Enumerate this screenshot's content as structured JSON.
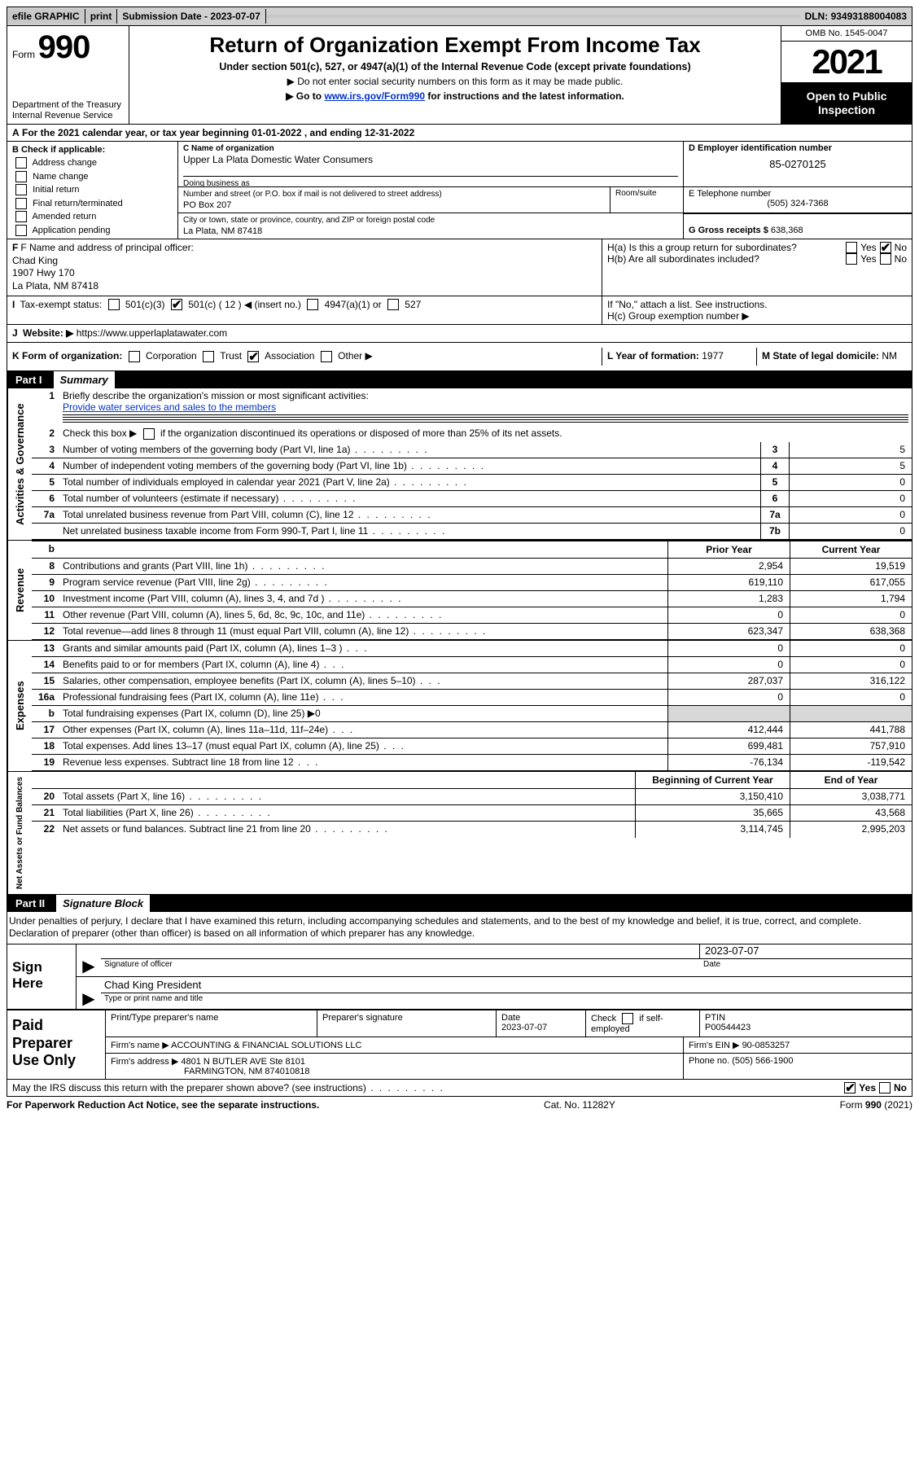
{
  "top": {
    "efile": "efile GRAPHIC",
    "print": "print",
    "submission_label": "Submission Date - ",
    "submission_date": "2023-07-07",
    "dln_label": "DLN: ",
    "dln": "93493188004083"
  },
  "header": {
    "form_word": "Form",
    "form_num": "990",
    "title": "Return of Organization Exempt From Income Tax",
    "sub1": "Under section 501(c), 527, or 4947(a)(1) of the Internal Revenue Code (except private foundations)",
    "sub2": "▶ Do not enter social security numbers on this form as it may be made public.",
    "sub3_pre": "▶ Go to ",
    "sub3_link": "www.irs.gov/Form990",
    "sub3_post": " for instructions and the latest information.",
    "dept": "Department of the Treasury\nInternal Revenue Service",
    "omb": "OMB No. 1545-0047",
    "year": "2021",
    "open": "Open to Public Inspection"
  },
  "a_line_pre": "For the 2021 calendar year, or tax year beginning ",
  "a_begin": "01-01-2022",
  "a_mid": " , and ending ",
  "a_end": "12-31-2022",
  "b": {
    "title": "B Check if applicable:",
    "items": [
      "Address change",
      "Name change",
      "Initial return",
      "Final return/terminated",
      "Amended return",
      "Application pending"
    ]
  },
  "c": {
    "label": "C Name of organization",
    "name": "Upper La Plata Domestic Water Consumers",
    "dba_label": "Doing business as",
    "addr_label": "Number and street (or P.O. box if mail is not delivered to street address)",
    "room_label": "Room/suite",
    "street": "PO Box 207",
    "city_label": "City or town, state or province, country, and ZIP or foreign postal code",
    "city": "La Plata, NM  87418"
  },
  "d": {
    "label": "D Employer identification number",
    "ein": "85-0270125"
  },
  "e": {
    "label": "E Telephone number",
    "phone": "(505) 324-7368"
  },
  "g": {
    "label": "G Gross receipts $ ",
    "amount": "638,368"
  },
  "f": {
    "label": "F Name and address of principal officer:",
    "name": "Chad King",
    "street": "1907 Hwy 170",
    "city": "La Plata, NM  87418"
  },
  "h": {
    "a": "H(a)  Is this a group return for subordinates?",
    "b": "H(b)  Are all subordinates included?",
    "b_note": "If \"No,\" attach a list. See instructions.",
    "c": "H(c)  Group exemption number ▶",
    "yes": "Yes",
    "no": "No"
  },
  "i": {
    "label": "Tax-exempt status:",
    "o1": "501(c)(3)",
    "o2_pre": "501(c) ( ",
    "o2_num": "12",
    "o2_post": " ) ◀ (insert no.)",
    "o3": "4947(a)(1) or",
    "o4": "527"
  },
  "j": {
    "label": "Website: ▶",
    "url": "https://www.upperlaplatawater.com"
  },
  "k": {
    "label": "K Form of organization:",
    "opts": [
      "Corporation",
      "Trust",
      "Association",
      "Other ▶"
    ],
    "checked_index": 2
  },
  "l": {
    "label": "L Year of formation: ",
    "val": "1977"
  },
  "m": {
    "label": "M State of legal domicile: ",
    "val": "NM"
  },
  "part1": {
    "num": "Part I",
    "title": "Summary"
  },
  "summary": {
    "l1_label": "Briefly describe the organization's mission or most significant activities:",
    "l1_text": "Provide water services and sales to the members",
    "l2": "Check this box ▶         if the organization discontinued its operations or disposed of more than 25% of its net assets.",
    "rows_ag": [
      {
        "n": "3",
        "t": "Number of voting members of the governing body (Part VI, line 1a)",
        "box": "3",
        "v": "5"
      },
      {
        "n": "4",
        "t": "Number of independent voting members of the governing body (Part VI, line 1b)",
        "box": "4",
        "v": "5"
      },
      {
        "n": "5",
        "t": "Total number of individuals employed in calendar year 2021 (Part V, line 2a)",
        "box": "5",
        "v": "0"
      },
      {
        "n": "6",
        "t": "Total number of volunteers (estimate if necessary)",
        "box": "6",
        "v": "0"
      },
      {
        "n": "7a",
        "t": "Total unrelated business revenue from Part VIII, column (C), line 12",
        "box": "7a",
        "v": "0"
      },
      {
        "n": "",
        "t": "Net unrelated business taxable income from Form 990-T, Part I, line 11",
        "box": "7b",
        "v": "0"
      }
    ],
    "prior_hdr": "Prior Year",
    "curr_hdr": "Current Year",
    "rev": [
      {
        "n": "8",
        "t": "Contributions and grants (Part VIII, line 1h)",
        "p": "2,954",
        "c": "19,519"
      },
      {
        "n": "9",
        "t": "Program service revenue (Part VIII, line 2g)",
        "p": "619,110",
        "c": "617,055"
      },
      {
        "n": "10",
        "t": "Investment income (Part VIII, column (A), lines 3, 4, and 7d )",
        "p": "1,283",
        "c": "1,794"
      },
      {
        "n": "11",
        "t": "Other revenue (Part VIII, column (A), lines 5, 6d, 8c, 9c, 10c, and 11e)",
        "p": "0",
        "c": "0"
      },
      {
        "n": "12",
        "t": "Total revenue—add lines 8 through 11 (must equal Part VIII, column (A), line 12)",
        "p": "623,347",
        "c": "638,368"
      }
    ],
    "exp": [
      {
        "n": "13",
        "t": "Grants and similar amounts paid (Part IX, column (A), lines 1–3 )",
        "p": "0",
        "c": "0"
      },
      {
        "n": "14",
        "t": "Benefits paid to or for members (Part IX, column (A), line 4)",
        "p": "0",
        "c": "0"
      },
      {
        "n": "15",
        "t": "Salaries, other compensation, employee benefits (Part IX, column (A), lines 5–10)",
        "p": "287,037",
        "c": "316,122"
      },
      {
        "n": "16a",
        "t": "Professional fundraising fees (Part IX, column (A), line 11e)",
        "p": "0",
        "c": "0"
      },
      {
        "n": "b",
        "t": "Total fundraising expenses (Part IX, column (D), line 25) ▶0",
        "p": "",
        "c": "",
        "shade": true
      },
      {
        "n": "17",
        "t": "Other expenses (Part IX, column (A), lines 11a–11d, 11f–24e)",
        "p": "412,444",
        "c": "441,788"
      },
      {
        "n": "18",
        "t": "Total expenses. Add lines 13–17 (must equal Part IX, column (A), line 25)",
        "p": "699,481",
        "c": "757,910"
      },
      {
        "n": "19",
        "t": "Revenue less expenses. Subtract line 18 from line 12",
        "p": "-76,134",
        "c": "-119,542"
      }
    ],
    "na_hdr1": "Beginning of Current Year",
    "na_hdr2": "End of Year",
    "na": [
      {
        "n": "20",
        "t": "Total assets (Part X, line 16)",
        "p": "3,150,410",
        "c": "3,038,771"
      },
      {
        "n": "21",
        "t": "Total liabilities (Part X, line 26)",
        "p": "35,665",
        "c": "43,568"
      },
      {
        "n": "22",
        "t": "Net assets or fund balances. Subtract line 21 from line 20",
        "p": "3,114,745",
        "c": "2,995,203"
      }
    ]
  },
  "side_labels": {
    "ag": "Activities & Governance",
    "rev": "Revenue",
    "exp": "Expenses",
    "na": "Net Assets or Fund Balances"
  },
  "part2": {
    "num": "Part II",
    "title": "Signature Block"
  },
  "declare": "Under penalties of perjury, I declare that I have examined this return, including accompanying schedules and statements, and to the best of my knowledge and belief, it is true, correct, and complete. Declaration of preparer (other than officer) is based on all information of which preparer has any knowledge.",
  "sign": {
    "here": "Sign Here",
    "sig_label": "Signature of officer",
    "date_label": "Date",
    "date": "2023-07-07",
    "name": "Chad King President",
    "name_label": "Type or print name and title"
  },
  "preparer": {
    "title": "Paid Preparer Use Only",
    "name_label": "Print/Type preparer's name",
    "sig_label": "Preparer's signature",
    "date_label": "Date",
    "date": "2023-07-07",
    "check_label": "Check         if self-employed",
    "ptin_label": "PTIN",
    "ptin": "P00544423",
    "firm_name_label": "Firm's name    ▶ ",
    "firm_name": "ACCOUNTING & FINANCIAL SOLUTIONS LLC",
    "firm_ein_label": "Firm's EIN ▶ ",
    "firm_ein": "90-0853257",
    "firm_addr_label": "Firm's address ▶ ",
    "firm_addr1": "4801 N BUTLER AVE Ste 8101",
    "firm_addr2": "FARMINGTON, NM  874010818",
    "phone_label": "Phone no. ",
    "phone": "(505) 566-1900"
  },
  "may_discuss": "May the IRS discuss this return with the preparer shown above? (see instructions)",
  "footer": {
    "left": "For Paperwork Reduction Act Notice, see the separate instructions.",
    "mid": "Cat. No. 11282Y",
    "right_pre": "Form ",
    "right_form": "990",
    "right_post": " (2021)"
  }
}
